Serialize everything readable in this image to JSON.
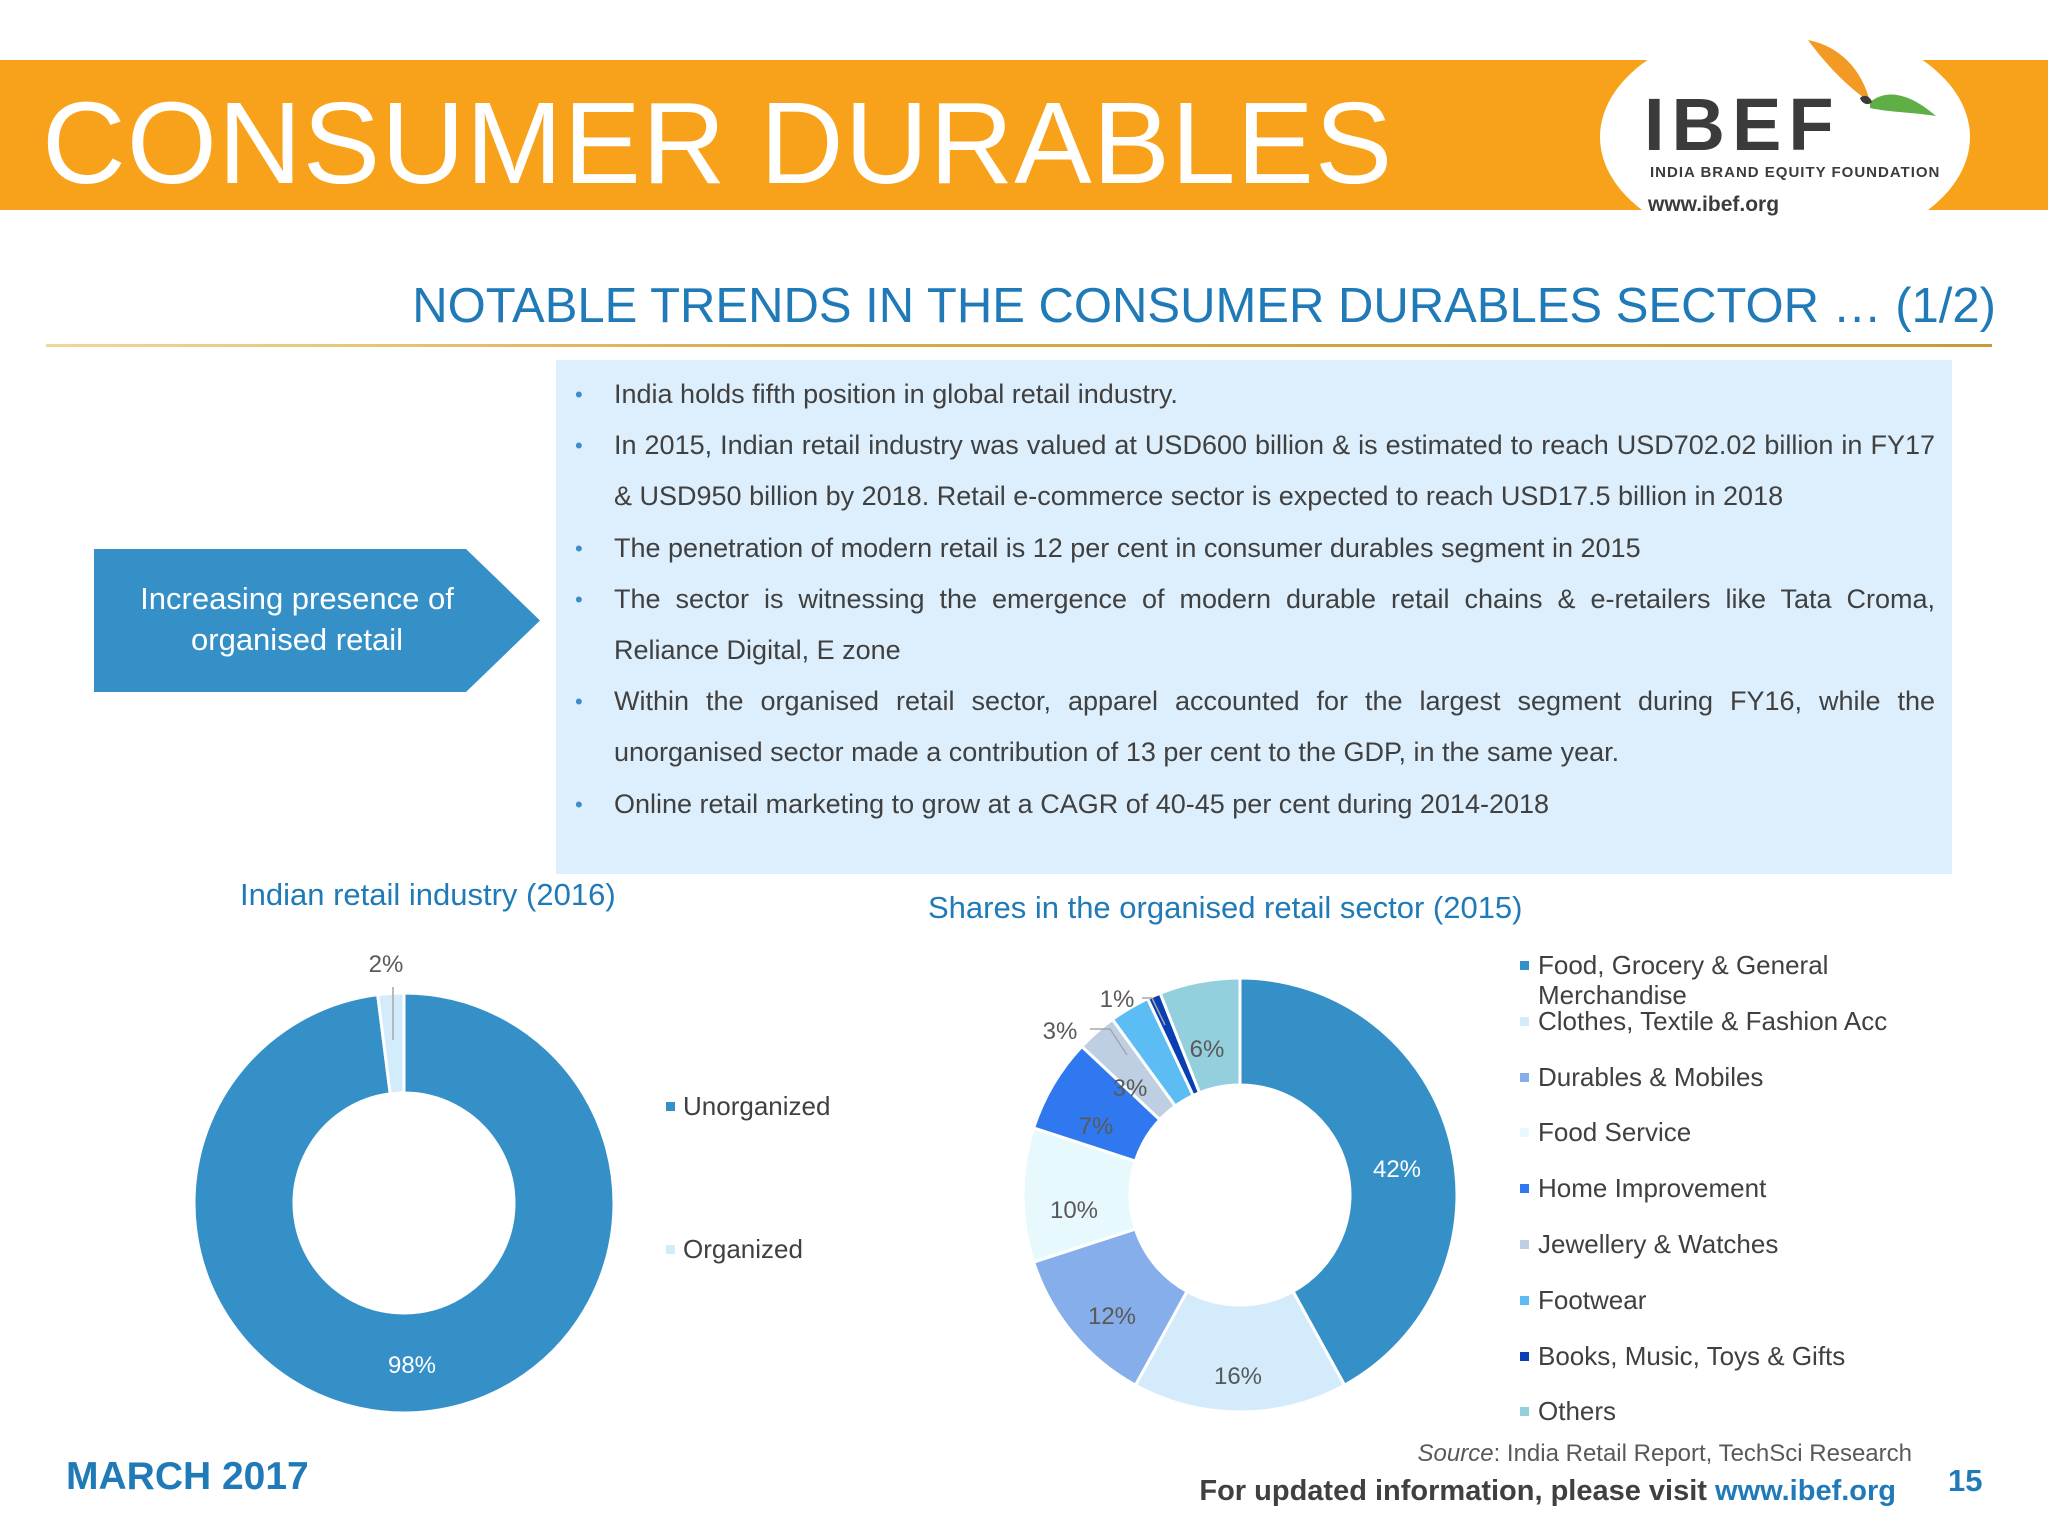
{
  "header": {
    "title": "CONSUMER DURABLES",
    "logo": {
      "name": "IBEF",
      "tagline": "INDIA BRAND EQUITY FOUNDATION",
      "url": "www.ibef.org"
    }
  },
  "section_title": "NOTABLE TRENDS IN THE CONSUMER DURABLES SECTOR … (1/2)",
  "callout": "Increasing presence of organised retail",
  "bullets": [
    "India holds fifth position in global retail industry.",
    "In 2015, Indian retail industry was valued at USD600 billion & is estimated to reach USD702.02 billion in FY17 & USD950 billion by 2018. Retail e-commerce sector is expected to reach USD17.5 billion in 2018",
    "The penetration of modern retail is 12 per cent in consumer durables segment in 2015",
    "The sector is witnessing the emergence of modern durable retail chains & e-retailers like Tata Croma, Reliance Digital, E zone",
    "Within the organised retail sector, apparel accounted for the largest segment during FY16, while the unorganised sector made a contribution of 13 per cent to the GDP, in the same year.",
    "Online retail marketing to grow at a CAGR of 40-45 per cent during 2014-2018"
  ],
  "chart_data": [
    {
      "type": "pie",
      "variant": "donut",
      "title": "Indian retail industry (2016)",
      "categories": [
        "Unorganized",
        "Organized"
      ],
      "values": [
        98,
        2
      ],
      "labels": [
        "98%",
        "2%"
      ],
      "colors": [
        "#3690c8",
        "#d3ecfb"
      ],
      "legend": "right"
    },
    {
      "type": "pie",
      "variant": "donut",
      "title": "Shares in the organised retail sector (2015)",
      "categories": [
        "Food, Grocery & General Merchandise",
        "Clothes, Textile & Fashion Acc",
        "Durables & Mobiles",
        "Food Service",
        "Home Improvement",
        "Jewellery & Watches",
        "Footwear",
        "Books, Music, Toys & Gifts",
        "Others"
      ],
      "values": [
        42,
        16,
        12,
        10,
        7,
        3,
        3,
        1,
        6
      ],
      "labels": [
        "42%",
        "16%",
        "12%",
        "10%",
        "7%",
        "3%",
        "3%",
        "1%",
        "6%"
      ],
      "colors": [
        "#3690c8",
        "#d3ebfb",
        "#86aeea",
        "#e8f9fe",
        "#3078f0",
        "#bfcfe3",
        "#5bbdf4",
        "#0a3fb4",
        "#94cfdd"
      ],
      "legend": "right"
    }
  ],
  "footer": {
    "date": "MARCH 2017",
    "source_label": "Source",
    "source_text": ": India Retail Report, TechSci Research",
    "visit_text": "For updated information, please visit ",
    "visit_url": "www.ibef.org",
    "page_number": "15"
  }
}
